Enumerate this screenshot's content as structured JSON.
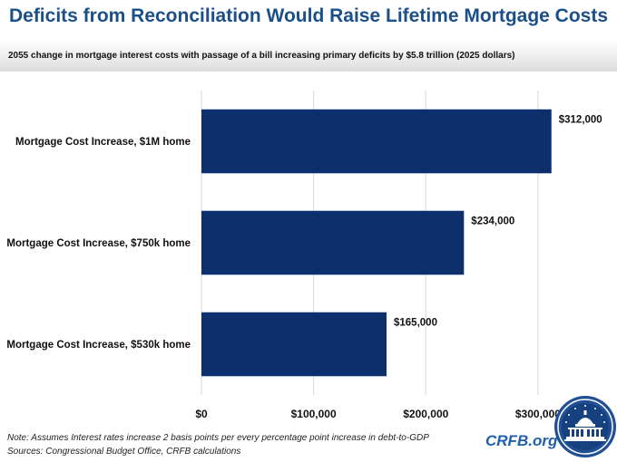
{
  "header": {
    "title": "Deficits from Reconciliation Would Raise Lifetime Mortgage Costs",
    "subtitle": "2055 change in mortgage interest costs with passage of a bill increasing primary deficits by $5.8 trillion (2025 dollars)"
  },
  "chart_data": {
    "type": "bar",
    "orientation": "horizontal",
    "categories": [
      "Mortgage Cost Increase, $1M home",
      "Mortgage Cost Increase, $750k home",
      "Mortgage Cost Increase, $530k home"
    ],
    "values": [
      312000,
      234000,
      165000
    ],
    "data_labels": [
      "$312,000",
      "$234,000",
      "$165,000"
    ],
    "x_ticks": [
      0,
      100000,
      200000,
      300000
    ],
    "x_tick_labels": [
      "$0",
      "$100,000",
      "$200,000",
      "$300,000"
    ],
    "xlim": [
      0,
      330000
    ],
    "grid": "vertical",
    "bar_color": "#0d2f6b"
  },
  "footer": {
    "note": "Note: Assumes Interest rates increase 2 basis points per every percentage point increase in debt-to-GDP",
    "sources": "Sources: Congressional Budget Office, CRFB calculations",
    "brand": "CRFB.org"
  }
}
